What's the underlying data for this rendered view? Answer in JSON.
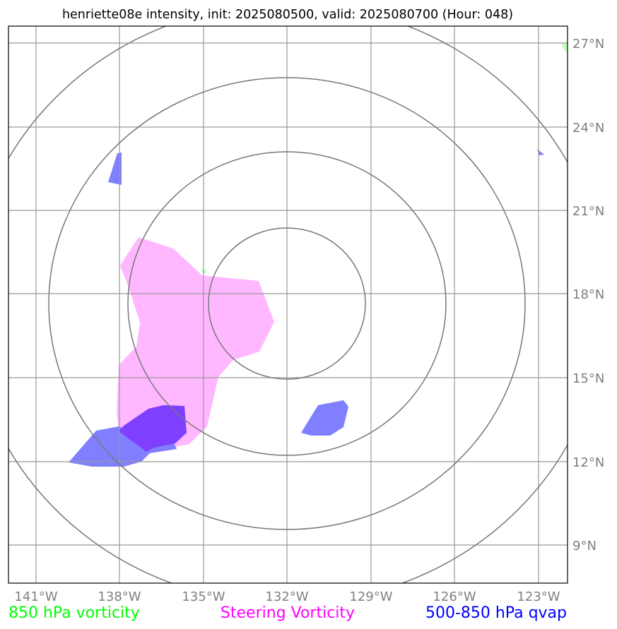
{
  "title": "henriette08e intensity, init: 2025080500, valid: 2025080700 (Hour: 048)",
  "lon_labels": [
    "141°W",
    "138°W",
    "135°W",
    "132°W",
    "129°W",
    "126°W",
    "123°W"
  ],
  "lat_labels": [
    "27°N",
    "24°N",
    "21°N",
    "18°N",
    "15°N",
    "12°N",
    "9°N"
  ],
  "legend": [
    {
      "label": "850 hPa vorticity",
      "color": "#00ff00"
    },
    {
      "label": "Steering Vorticity",
      "color": "#ff00ff"
    },
    {
      "label": "500-850 hPa qvap",
      "color": "#0000ff"
    }
  ],
  "colors": {
    "frame": "#000000",
    "gridlines": "#999999",
    "range_rings": "#777777",
    "tick_labels": "#7f7f7f",
    "steering_vorticity_fill": "#ffb8ff",
    "qvap_fill": "#7f7fff",
    "overlap_fill": "#7f3fff",
    "vorticity_850_fill": "#b8ffb8"
  },
  "map_extent": {
    "lon_min": -142,
    "lon_max": -122,
    "lat_min": 7.7,
    "lat_max": 27.7
  },
  "storm_center": {
    "lon": -132,
    "lat": 17.5
  }
}
